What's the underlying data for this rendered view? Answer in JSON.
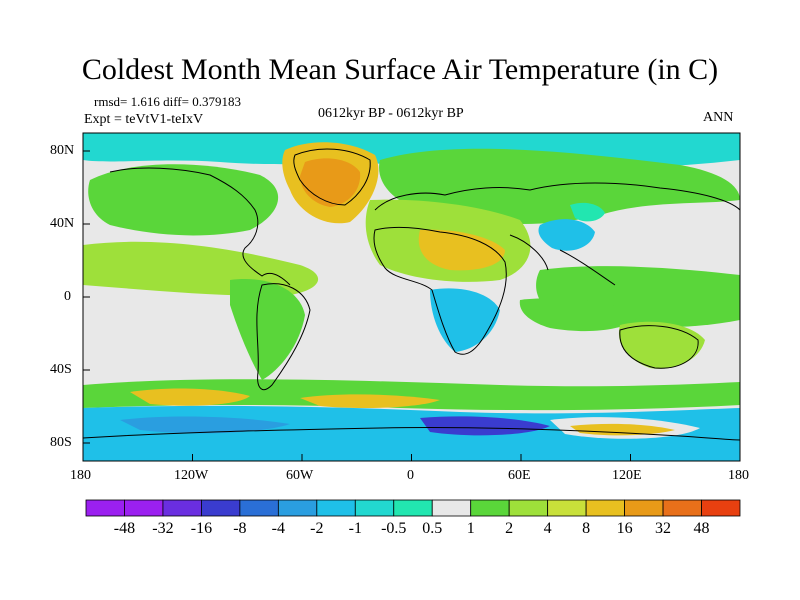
{
  "title": "Coldest Month Mean Surface Air Temperature (in C)",
  "stats": {
    "rmsd_diff": "rmsd= 1.616 diff= 0.379183",
    "expt": "Expt = teVtV1-teIxV"
  },
  "subtitle": "0612kyr BP - 0612kyr BP",
  "season": "ANN",
  "lat_labels": [
    "80N",
    "40N",
    "0",
    "40S",
    "80S"
  ],
  "lon_labels": [
    "180",
    "120W",
    "60W",
    "0",
    "60E",
    "120E",
    "180"
  ],
  "colorbar": {
    "labels": [
      "-48",
      "-32",
      "-16",
      "-8",
      "-4",
      "-2",
      "-1",
      "-0.5",
      "0.5",
      "1",
      "2",
      "4",
      "8",
      "16",
      "32",
      "48"
    ],
    "colors": [
      "#9b20f0",
      "#6a2ee0",
      "#3a3ccf",
      "#2a6fd6",
      "#2a9ee0",
      "#1fc0e8",
      "#22d8d0",
      "#22e6b0",
      "#e8e8e8",
      "#5ad63a",
      "#9ee03a",
      "#c8e03a",
      "#e8c020",
      "#e89a18",
      "#e8701a",
      "#e84010"
    ]
  }
}
